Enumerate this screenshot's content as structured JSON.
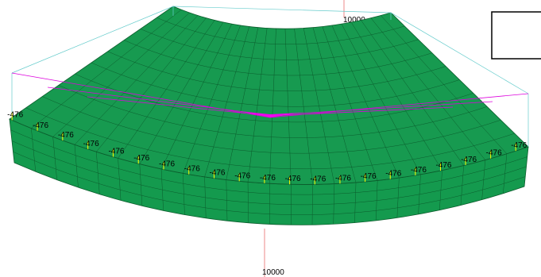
{
  "axis_labels": {
    "top": "10000",
    "bottom": "10000"
  },
  "load_labels": [
    "-476",
    "-476",
    "-476",
    "-476",
    "-476",
    "-476",
    "-476",
    "-476",
    "-476",
    "-476",
    "-476",
    "-476",
    "-476",
    "-476",
    "-476",
    "-476",
    "-476",
    "-476",
    "-476",
    "-476",
    "-476"
  ]
}
